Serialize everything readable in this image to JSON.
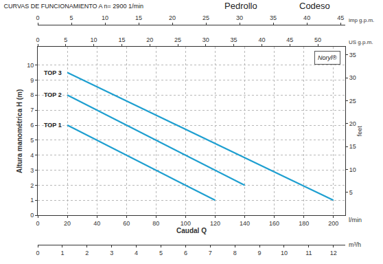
{
  "chart_data": {
    "type": "line",
    "title": "CURVAS DE FUNCIONAMIENTO A n= 2900 1/min",
    "annotations": [
      "Pedrollo",
      "Codeso",
      "Noryl®"
    ],
    "x_label": "Caudal Q",
    "x_unit": "l/min",
    "y_label": "Altura manométrica H (m)",
    "xlim": [
      0,
      208
    ],
    "xticks": [
      0,
      20,
      40,
      60,
      80,
      100,
      120,
      140,
      160,
      180,
      200
    ],
    "ylim": [
      0,
      11.2
    ],
    "yticks": [
      0,
      1,
      2,
      3,
      4,
      5,
      6,
      7,
      8,
      9,
      10
    ],
    "x2_label": "m³/h",
    "x2lim": [
      0,
      12.48
    ],
    "x2ticks": [
      0,
      1,
      2,
      3,
      4,
      5,
      6,
      7,
      8,
      9,
      10,
      11,
      12
    ],
    "x3_label": "US g.p.m.",
    "x3lim": [
      0,
      54.9
    ],
    "x3ticks": [
      0,
      5,
      10,
      15,
      20,
      25,
      30,
      35,
      40,
      45,
      50
    ],
    "x4_label": "imp g.p.m.",
    "x4lim": [
      0,
      45.7
    ],
    "x4ticks": [
      0,
      5,
      10,
      15,
      20,
      25,
      30,
      35,
      40,
      45
    ],
    "y2_label": "feet",
    "y2lim": [
      0,
      36.7
    ],
    "y2ticks": [
      5,
      10,
      15,
      20,
      25,
      30,
      35
    ],
    "grid": true,
    "series": [
      {
        "name": "TOP 1",
        "color": "#1e9fd0",
        "x": [
          20,
          120
        ],
        "values": [
          6,
          1
        ]
      },
      {
        "name": "TOP 2",
        "color": "#1e9fd0",
        "x": [
          20,
          140
        ],
        "values": [
          8,
          2
        ]
      },
      {
        "name": "TOP 3",
        "color": "#1e9fd0",
        "x": [
          20,
          200
        ],
        "values": [
          9.5,
          1
        ]
      }
    ]
  }
}
